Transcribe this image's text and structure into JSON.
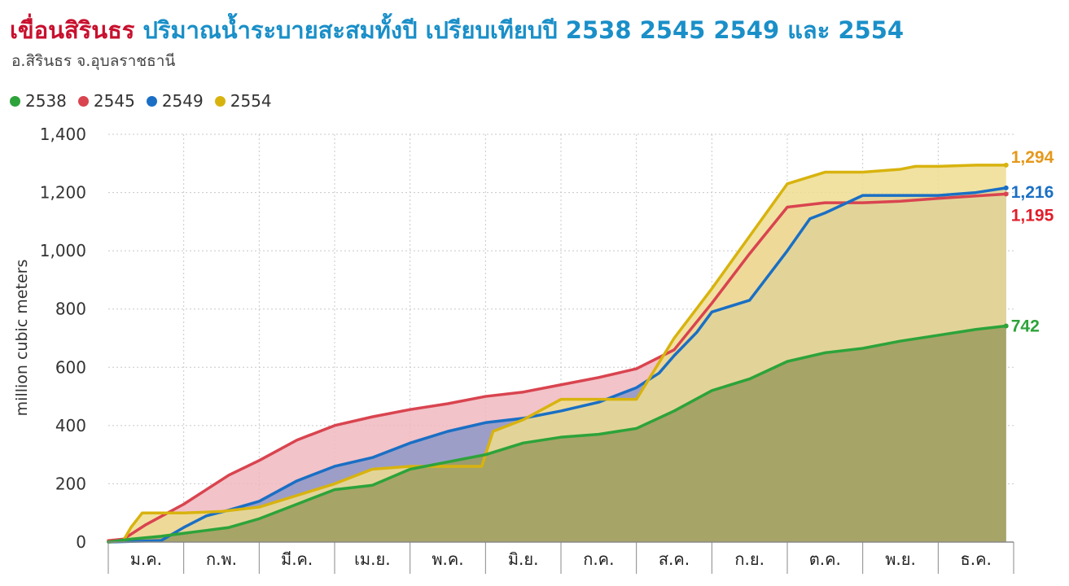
{
  "header": {
    "title_dam": "เขื่อนสิรินธร",
    "title_rest": "ปริมาณน้ำระบายสะสมทั้งปี เปรียบเทียบปี 2538 2545 2549 และ 2554",
    "subtitle": "อ.สิรินธร จ.อุบลราชธานี"
  },
  "chart_data": {
    "type": "area",
    "title": "ปริมาณน้ำระบายสะสมทั้งปี เปรียบเทียบปี 2538 2545 2549 และ 2554",
    "ylabel": "million cubic meters",
    "xlabel": "",
    "ylim": [
      0,
      1400
    ],
    "yticks": [
      "0",
      "200",
      "400",
      "600",
      "800",
      "1,000",
      "1,200",
      "1,400"
    ],
    "months": [
      "ม.ค.",
      "ก.พ.",
      "มี.ค.",
      "เม.ย.",
      "พ.ค.",
      "มิ.ย.",
      "ก.ค.",
      "ส.ค.",
      "ก.ย.",
      "ต.ค.",
      "พ.ย.",
      "ธ.ค."
    ],
    "x_unit": "month",
    "grid": true,
    "legend": "top-left",
    "series": [
      {
        "name": "2545",
        "color": "#d9444f",
        "fill": "#f0b8bf",
        "end_label": "1,195",
        "end_label_color": "#e11d2a",
        "x": [
          0,
          0.2,
          0.5,
          1.0,
          1.3,
          1.6,
          2.0,
          2.5,
          3.0,
          3.5,
          4.0,
          4.5,
          5.0,
          5.5,
          6.0,
          6.5,
          7.0,
          7.5,
          8.0,
          8.5,
          9.0,
          9.5,
          10.0,
          10.5,
          11.0,
          11.9
        ],
        "values": [
          5,
          10,
          60,
          130,
          180,
          230,
          280,
          350,
          400,
          430,
          455,
          475,
          500,
          515,
          540,
          565,
          595,
          660,
          820,
          990,
          1150,
          1165,
          1165,
          1170,
          1180,
          1195
        ]
      },
      {
        "name": "2549",
        "color": "#1a6fc4",
        "fill": "#8d98c8",
        "end_label": "1,216",
        "end_label_color": "#1a6fc4",
        "x": [
          0,
          0.3,
          0.7,
          1.0,
          1.3,
          1.6,
          2.0,
          2.5,
          3.0,
          3.5,
          4.0,
          4.5,
          5.0,
          5.5,
          6.0,
          6.5,
          7.0,
          7.3,
          7.5,
          7.8,
          8.0,
          8.5,
          9.0,
          9.3,
          9.5,
          10.0,
          10.5,
          11.0,
          11.5,
          11.9
        ],
        "values": [
          0,
          2,
          5,
          50,
          90,
          110,
          140,
          210,
          260,
          290,
          340,
          380,
          410,
          425,
          450,
          480,
          530,
          580,
          640,
          720,
          790,
          830,
          1000,
          1110,
          1130,
          1190,
          1190,
          1190,
          1200,
          1216
        ]
      },
      {
        "name": "2554",
        "color": "#d8b30e",
        "fill": "#eedd90",
        "end_label": "1,294",
        "end_label_color": "#e5981a",
        "x": [
          0,
          0.2,
          0.3,
          0.45,
          0.8,
          1.0,
          1.5,
          2.0,
          2.5,
          3.0,
          3.5,
          4.0,
          4.5,
          4.95,
          5.1,
          5.5,
          6.0,
          6.5,
          7.0,
          7.5,
          8.0,
          8.5,
          9.0,
          9.5,
          10.0,
          10.5,
          10.7,
          11.0,
          11.5,
          11.9
        ],
        "values": [
          0,
          5,
          50,
          100,
          100,
          100,
          105,
          120,
          160,
          200,
          250,
          260,
          260,
          260,
          380,
          420,
          490,
          490,
          490,
          700,
          870,
          1050,
          1230,
          1270,
          1270,
          1280,
          1290,
          1290,
          1294,
          1294
        ]
      },
      {
        "name": "2538",
        "color": "#2da33a",
        "fill": "#9c9b5e",
        "end_label": "742",
        "end_label_color": "#2da33a",
        "x": [
          0,
          0.3,
          0.7,
          1.0,
          1.3,
          1.6,
          2.0,
          2.5,
          3.0,
          3.5,
          4.0,
          4.5,
          5.0,
          5.5,
          6.0,
          6.5,
          7.0,
          7.5,
          8.0,
          8.5,
          9.0,
          9.5,
          10.0,
          10.5,
          11.0,
          11.5,
          11.9
        ],
        "values": [
          0,
          10,
          20,
          30,
          40,
          50,
          80,
          130,
          180,
          195,
          250,
          275,
          300,
          340,
          360,
          370,
          390,
          450,
          520,
          560,
          620,
          650,
          665,
          690,
          710,
          730,
          742
        ]
      }
    ]
  }
}
